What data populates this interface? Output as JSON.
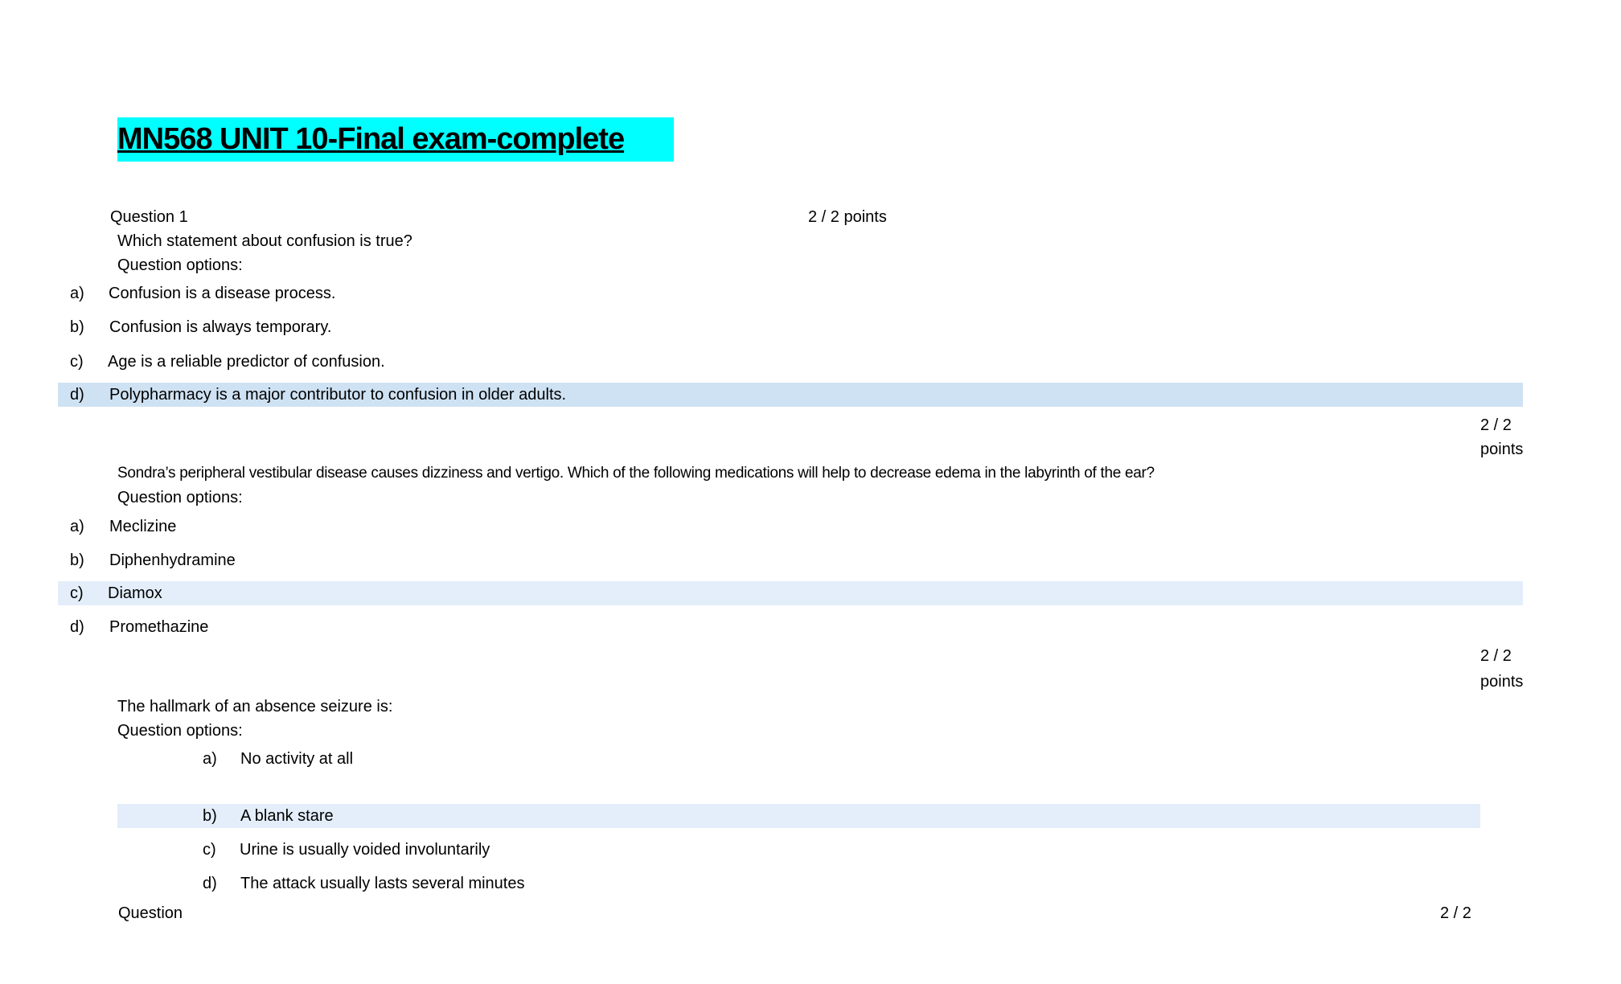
{
  "title": "MN568 UNIT 10-Final exam-complete",
  "questions": [
    {
      "label": "Question 1",
      "score": "2 / 2 points",
      "text": "Which statement about confusion is true?",
      "options_label": "Question options:",
      "options": [
        {
          "letter": "a)",
          "text": "Confusion is a disease process."
        },
        {
          "letter": "b)",
          "text": "Confusion is always temporary."
        },
        {
          "letter": "c)",
          "text": "Age is a reliable predictor of confusion."
        },
        {
          "letter": "d)",
          "text": "Polypharmacy is a major contributor to confusion in older adults.",
          "highlighted": true
        }
      ]
    },
    {
      "score_line1": "2 / 2",
      "score_line2": "points",
      "text": "Sondra’s peripheral vestibular disease causes dizziness and vertigo. Which of the following medications will help to decrease edema in the labyrinth of the ear?",
      "options_label": "Question options:",
      "options": [
        {
          "letter": "a)",
          "text": "Meclizine"
        },
        {
          "letter": "b)",
          "text": "Diphenhydramine"
        },
        {
          "letter": "c)",
          "text": "Diamox",
          "highlighted": true
        },
        {
          "letter": "d)",
          "text": "Promethazine"
        }
      ]
    },
    {
      "score_line1": "2 / 2",
      "score_line2": "points",
      "text": "The hallmark of an absence seizure is:",
      "options_label": "Question options:",
      "options": [
        {
          "letter": "a)",
          "text": "No activity at all"
        },
        {
          "letter": "b)",
          "text": "A blank stare",
          "highlighted": true
        },
        {
          "letter": "c)",
          "text": "Urine is usually voided involuntarily"
        },
        {
          "letter": "d)",
          "text": "The attack usually lasts several minutes"
        }
      ]
    },
    {
      "label": "Question",
      "score": "2 / 2"
    }
  ],
  "colors": {
    "title_highlight": "#00ffff",
    "answer_highlight_1": "#cfe2f3",
    "answer_highlight_2": "#e3eefa"
  }
}
